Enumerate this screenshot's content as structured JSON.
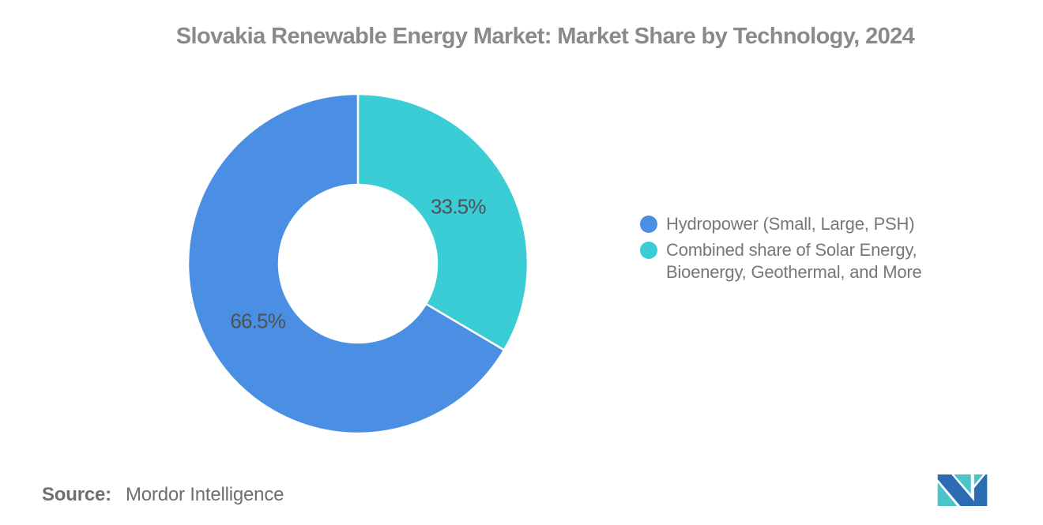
{
  "title": {
    "text": "Slovakia Renewable Energy Market: Market Share by Technology, 2024",
    "color": "#8a8a8a"
  },
  "chart_data": {
    "type": "pie",
    "subtype": "donut",
    "title": "Slovakia Renewable Energy Market: Market Share by Technology, 2024",
    "unit": "%",
    "start_angle_deg": 0,
    "direction": "clockwise",
    "legend_position": "right",
    "data_label_color": "#4e5257",
    "slices": [
      {
        "label": "Combined share of Solar Energy, Bioenergy, Geothermal, and More",
        "value": 33.5,
        "data_label": "33.5%",
        "color": "#3bcdd6"
      },
      {
        "label": "Hydropower (Small, Large, PSH)",
        "value": 66.5,
        "data_label": "66.5%",
        "color": "#4a8fe3"
      }
    ]
  },
  "legend": {
    "items": [
      {
        "label": "Hydropower (Small, Large, PSH)",
        "color": "#4a8fe3"
      },
      {
        "label": "Combined share of Solar Energy, Bioenergy, Geothermal, and More",
        "color": "#3bcdd6"
      }
    ],
    "text_color": "#75777a"
  },
  "source": {
    "label": "Source:",
    "value": "Mordor Intelligence"
  },
  "logo": {
    "name": "mordor-intelligence-logo",
    "teal": "#4ac4cb",
    "blue": "#2b6cb3"
  }
}
